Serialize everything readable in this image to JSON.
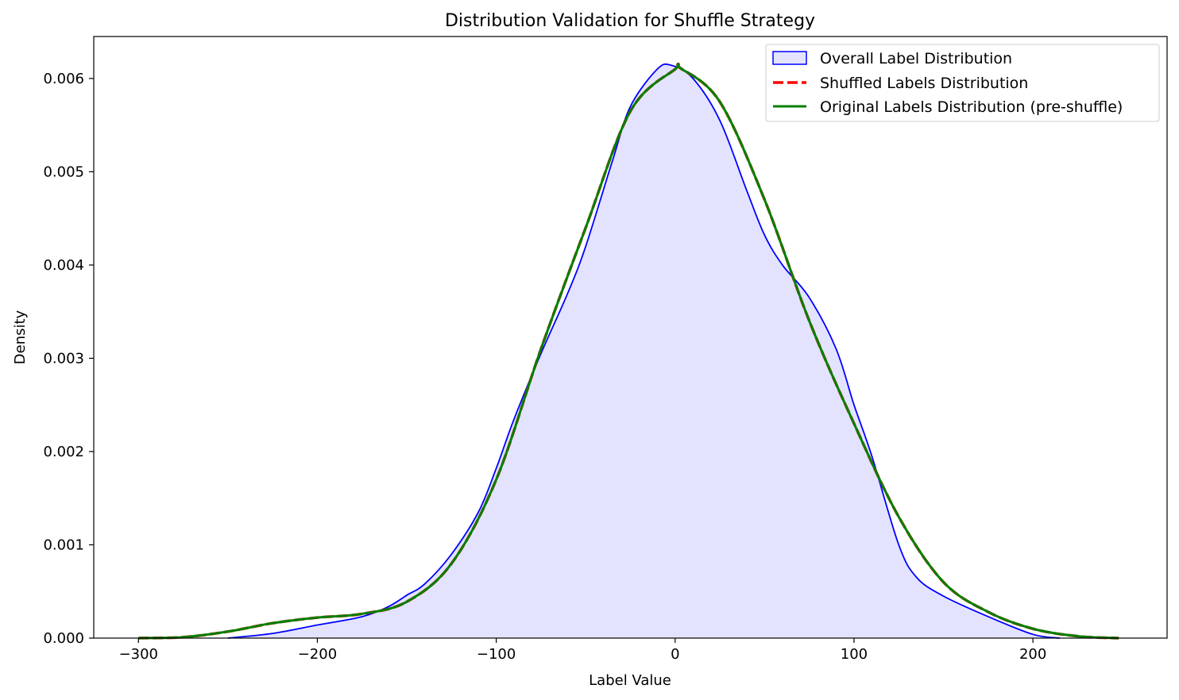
{
  "chart_data": {
    "type": "area",
    "title": "Distribution Validation for Shuffle Strategy",
    "xlabel": "Label Value",
    "ylabel": "Density",
    "xlim": [
      -325,
      275
    ],
    "ylim": [
      0,
      0.00645
    ],
    "xticks": [
      -300,
      -200,
      -100,
      0,
      100,
      200
    ],
    "xtick_labels": [
      "−300",
      "−200",
      "−100",
      "0",
      "100",
      "200"
    ],
    "yticks": [
      0,
      0.001,
      0.002,
      0.003,
      0.004,
      0.005,
      0.006
    ],
    "ytick_labels": [
      "0.000",
      "0.001",
      "0.002",
      "0.003",
      "0.004",
      "0.005",
      "0.006"
    ],
    "grid": false,
    "legend_position": "top-right",
    "series": [
      {
        "name": "Overall Label Distribution",
        "style": "filled",
        "color": "#0000ff",
        "fill": "#e3e3ff",
        "x": [
          -250,
          -225,
          -200,
          -175,
          -160,
          -150,
          -140,
          -125,
          -110,
          -100,
          -90,
          -75,
          -60,
          -50,
          -35,
          -25,
          -10,
          -2,
          10,
          25,
          40,
          50,
          60,
          75,
          90,
          100,
          110,
          125,
          135,
          150,
          175,
          200,
          215
        ],
        "y": [
          0.0,
          5e-05,
          0.00014,
          0.00023,
          0.00034,
          0.00046,
          0.00058,
          0.0009,
          0.00135,
          0.00182,
          0.00235,
          0.00305,
          0.0037,
          0.0042,
          0.00512,
          0.0057,
          0.0061,
          0.00614,
          0.006,
          0.00555,
          0.0048,
          0.00432,
          0.004,
          0.00365,
          0.0031,
          0.0025,
          0.00195,
          0.001,
          0.00065,
          0.00045,
          0.00023,
          4e-05,
          0.0
        ]
      },
      {
        "name": "Shuffled Labels Distribution",
        "style": "dashed",
        "color": "#ff0000",
        "x": [
          -300,
          -275,
          -250,
          -225,
          -200,
          -175,
          -150,
          -125,
          -100,
          -75,
          -50,
          -25,
          0,
          3,
          25,
          50,
          75,
          100,
          125,
          150,
          175,
          200,
          225,
          248
        ],
        "y": [
          0.0,
          1e-05,
          7e-05,
          0.00016,
          0.00022,
          0.00026,
          0.00039,
          0.0008,
          0.0017,
          0.0031,
          0.0044,
          0.00565,
          0.0061,
          0.00611,
          0.00575,
          0.0047,
          0.0034,
          0.0023,
          0.0013,
          0.0006,
          0.00028,
          0.0001,
          2e-05,
          0.0
        ]
      },
      {
        "name": "Original Labels Distribution (pre-shuffle)",
        "style": "solid",
        "color": "#008000",
        "x": [
          -300,
          -275,
          -250,
          -225,
          -200,
          -175,
          -150,
          -125,
          -100,
          -75,
          -50,
          -25,
          0,
          3,
          25,
          50,
          75,
          100,
          125,
          150,
          175,
          200,
          225,
          248
        ],
        "y": [
          0.0,
          1e-05,
          7e-05,
          0.00016,
          0.00022,
          0.00026,
          0.00039,
          0.0008,
          0.0017,
          0.0031,
          0.0044,
          0.00565,
          0.0061,
          0.00611,
          0.00575,
          0.0047,
          0.0034,
          0.0023,
          0.0013,
          0.0006,
          0.00028,
          0.0001,
          2e-05,
          0.0
        ]
      }
    ]
  }
}
